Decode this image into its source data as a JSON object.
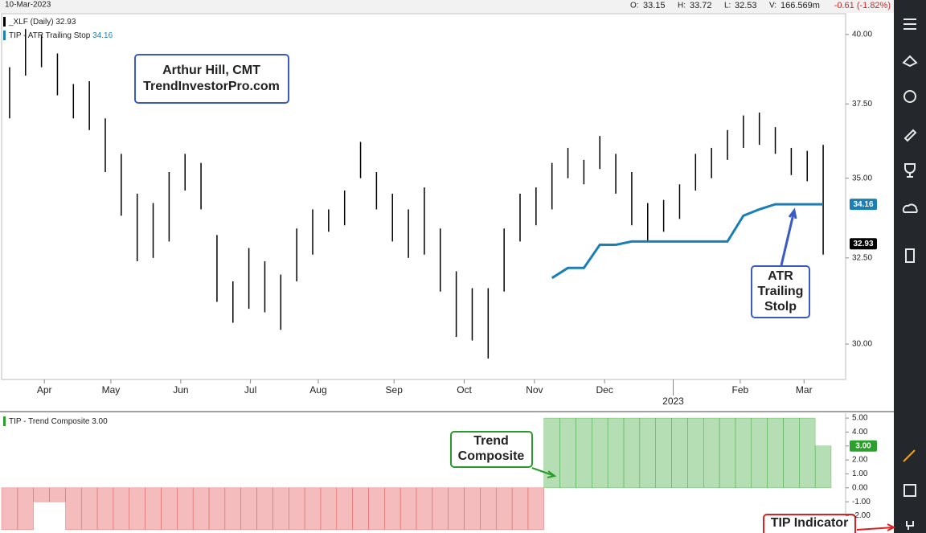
{
  "header": {
    "date": "10-Mar-2023",
    "open_label": "O:",
    "open": "33.15",
    "high_label": "H:",
    "high": "33.72",
    "low_label": "L:",
    "low": "32.53",
    "volume_label": "V:",
    "volume": "166.569m",
    "change": "-0.61 (-1.82%)"
  },
  "chart_data": [
    {
      "type": "ohlc",
      "log_scale": true,
      "ylim": [
        29.03,
        40.78
      ],
      "yticks": [
        {
          "value": 30,
          "label": "30.00"
        },
        {
          "value": 32.5,
          "label": "32.50"
        },
        {
          "value": 35,
          "label": "35.00"
        },
        {
          "value": 37.5,
          "label": "37.50"
        },
        {
          "value": 40,
          "label": "40.00"
        }
      ],
      "xlim": [
        0,
        52
      ],
      "xticks": [
        {
          "value": 2.68,
          "label": "Apr"
        },
        {
          "value": 6.85,
          "label": "May"
        },
        {
          "value": 11.23,
          "label": "Jun"
        },
        {
          "value": 15.6,
          "label": "Jul"
        },
        {
          "value": 19.85,
          "label": "Aug"
        },
        {
          "value": 24.6,
          "label": "Sep"
        },
        {
          "value": 29.0,
          "label": "Oct"
        },
        {
          "value": 33.4,
          "label": "Nov"
        },
        {
          "value": 37.8,
          "label": "Dec"
        },
        {
          "value": 46.3,
          "label": "Feb"
        },
        {
          "value": 50.3,
          "label": "Mar"
        }
      ],
      "year_tick": {
        "value": 42.1,
        "label": "2023"
      },
      "series": [
        {
          "name": "_XLF (Daily)",
          "last": 32.93,
          "color": "#000000",
          "high": [
            38.8,
            40.2,
            40.0,
            39.3,
            38.2,
            38.3,
            37.0,
            35.8,
            34.5,
            34.2,
            35.2,
            35.8,
            35.5,
            33.2,
            31.8,
            32.8,
            32.4,
            32.0,
            33.4,
            34.0,
            34.0,
            34.6,
            36.2,
            35.2,
            34.5,
            34.0,
            34.7,
            33.4,
            32.1,
            31.6,
            31.6,
            33.4,
            34.5,
            34.7,
            35.5,
            36.0,
            35.6,
            36.4,
            35.8,
            35.2,
            34.2,
            34.3,
            34.8,
            35.8,
            36.0,
            36.6,
            37.1,
            37.2,
            36.7,
            36.0,
            35.9,
            36.1
          ],
          "low": [
            37.0,
            38.5,
            38.8,
            37.8,
            37.0,
            36.6,
            35.2,
            33.8,
            32.4,
            32.5,
            33.0,
            34.6,
            34.0,
            31.2,
            30.6,
            31.0,
            30.9,
            30.4,
            31.8,
            32.6,
            33.3,
            33.5,
            35.0,
            34.0,
            33.0,
            32.5,
            32.6,
            31.5,
            30.2,
            30.1,
            29.6,
            31.5,
            33.0,
            33.5,
            34.0,
            35.0,
            34.8,
            35.3,
            34.5,
            33.5,
            33.0,
            33.3,
            33.7,
            34.6,
            35.0,
            35.6,
            36.0,
            36.1,
            35.8,
            35.1,
            34.9,
            32.6
          ]
        },
        {
          "name": "TIP - ATR Trailing Stop",
          "last": 34.16,
          "color": "#1a7fb5",
          "values": [
            null,
            null,
            null,
            null,
            null,
            null,
            null,
            null,
            null,
            null,
            null,
            null,
            null,
            null,
            null,
            null,
            null,
            null,
            null,
            null,
            null,
            null,
            null,
            null,
            null,
            null,
            null,
            null,
            null,
            null,
            null,
            null,
            null,
            null,
            31.9,
            32.2,
            32.2,
            32.9,
            32.9,
            33.0,
            33.0,
            33.0,
            33.0,
            33.0,
            33.0,
            33.0,
            33.8,
            34.0,
            34.16,
            34.16,
            34.16,
            34.16
          ]
        }
      ],
      "annotations": [
        {
          "lines": [
            "Arthur Hill, CMT",
            "TrendInvestorPro.com"
          ]
        },
        {
          "lines": [
            "ATR",
            "Trailing",
            "Stolp"
          ]
        }
      ]
    },
    {
      "type": "histogram_bars",
      "ylim": [
        -3.24,
        5.35
      ],
      "yticks": [
        {
          "value": -2,
          "label": "-2.00"
        },
        {
          "value": -1,
          "label": "-1.00"
        },
        {
          "value": 0,
          "label": "0.00"
        },
        {
          "value": 1,
          "label": "1.00"
        },
        {
          "value": 2,
          "label": "2.00"
        },
        {
          "value": 3,
          "label": "3.00"
        },
        {
          "value": 4,
          "label": "4.00"
        },
        {
          "value": 5,
          "label": "5.00"
        }
      ],
      "xlim": [
        0,
        52
      ],
      "series": [
        {
          "name": "TIP - Trend Composite",
          "last": {
            "value": 3,
            "label": "3.00"
          },
          "color": "#2ca02c",
          "negative_color": "#e04040",
          "values": [
            -3,
            -3,
            -1,
            -1,
            -3,
            -3,
            -3,
            -3,
            -3,
            -3,
            -3,
            -3,
            -3,
            -3,
            -3,
            -3,
            -3,
            -3,
            -3,
            -3,
            -3,
            -3,
            -3,
            -3,
            -3,
            -3,
            -3,
            -3,
            -3,
            -3,
            -3,
            -3,
            -3,
            -3,
            5,
            5,
            5,
            5,
            5,
            5,
            5,
            5,
            5,
            5,
            5,
            5,
            5,
            5,
            5,
            5,
            5,
            3
          ]
        }
      ],
      "annotations": [
        {
          "lines": [
            "Trend",
            "Composite"
          ]
        },
        {
          "lines": [
            "TIP Indicator"
          ]
        }
      ]
    }
  ]
}
